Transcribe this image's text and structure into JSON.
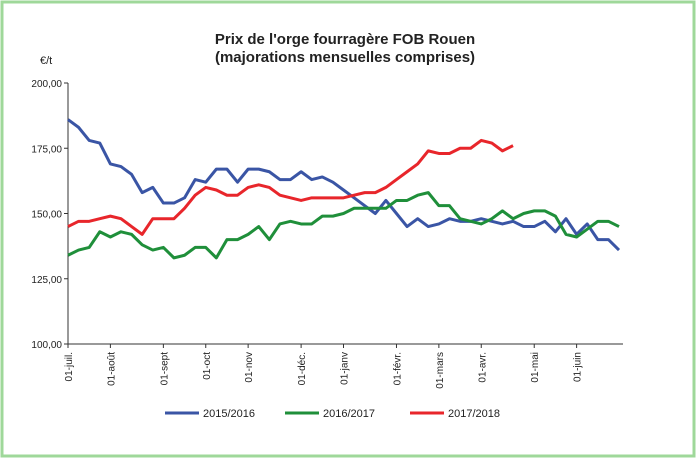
{
  "chart_data": {
    "type": "line",
    "title": "Prix de l'orge fourragère FOB Rouen",
    "subtitle": "(majorations mensuelles comprises)",
    "y_label": "€/t",
    "categories": [
      "01-juil.",
      null,
      null,
      null,
      "01-août",
      null,
      null,
      null,
      null,
      "01-sept",
      null,
      null,
      null,
      "01-oct",
      null,
      null,
      null,
      "01-nov",
      null,
      null,
      null,
      null,
      "01-déc.",
      null,
      null,
      null,
      "01-janv",
      null,
      null,
      null,
      null,
      "01-févr.",
      null,
      null,
      null,
      "01-mars",
      null,
      null,
      null,
      "01-avr.",
      null,
      null,
      null,
      null,
      "01-mai",
      null,
      null,
      null,
      "01-juin",
      null,
      null,
      null,
      null
    ],
    "series": [
      {
        "name": "2015/2016",
        "color": "#3a55a5",
        "values": [
          186,
          183,
          178,
          177,
          169,
          168,
          165,
          158,
          160,
          154,
          154,
          156,
          163,
          162,
          167,
          167,
          162,
          167,
          167,
          166,
          163,
          163,
          166,
          163,
          164,
          162,
          159,
          156,
          153,
          150,
          155,
          150,
          145,
          148,
          145,
          146,
          148,
          147,
          147,
          148,
          147,
          146,
          147,
          145,
          145,
          147,
          143,
          148,
          142,
          146,
          140,
          140,
          136
        ]
      },
      {
        "name": "2016/2017",
        "color": "#1f8f3a",
        "values": [
          134,
          136,
          137,
          143,
          141,
          143,
          142,
          138,
          136,
          137,
          133,
          134,
          137,
          137,
          133,
          140,
          140,
          142,
          145,
          140,
          146,
          147,
          146,
          146,
          149,
          149,
          150,
          152,
          152,
          152,
          152,
          155,
          155,
          157,
          158,
          153,
          153,
          148,
          147,
          146,
          148,
          151,
          148,
          150,
          151,
          151,
          149,
          142,
          141,
          144,
          147,
          147,
          145
        ]
      },
      {
        "name": "2017/2018",
        "color": "#e8262b",
        "values": [
          145,
          147,
          147,
          148,
          149,
          148,
          145,
          142,
          148,
          148,
          148,
          152,
          157,
          160,
          159,
          157,
          157,
          160,
          161,
          160,
          157,
          156,
          155,
          156,
          156,
          156,
          156,
          157,
          158,
          158,
          160,
          163,
          166,
          169,
          174,
          173,
          173,
          175,
          175,
          178,
          177,
          174,
          176,
          null,
          null,
          null,
          null,
          null,
          null,
          null,
          null,
          null,
          null
        ]
      }
    ],
    "ylim": [
      100,
      200
    ],
    "yticks": [
      {
        "value": 100,
        "label": "100,00"
      },
      {
        "value": 125,
        "label": "125,00"
      },
      {
        "value": 150,
        "label": "150,00"
      },
      {
        "value": 175,
        "label": "175,00"
      },
      {
        "value": 200,
        "label": "200,00"
      }
    ],
    "grid": false,
    "legend": "bottom"
  }
}
